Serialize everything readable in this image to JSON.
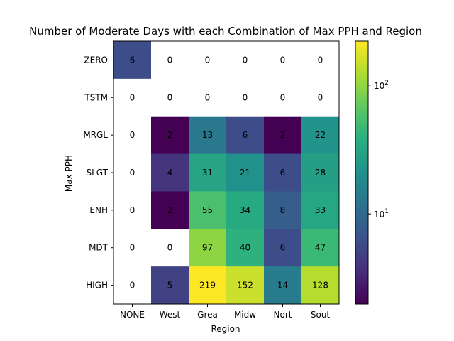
{
  "chart_data": {
    "type": "heatmap",
    "title": "Number of Moderate Days with each Combination of Max PPH and Region",
    "xlabel": "Region",
    "ylabel": "Max PPH",
    "x_categories": [
      "NONE",
      "West",
      "Grea",
      "Midw",
      "Nort",
      "Sout"
    ],
    "y_categories": [
      "ZERO",
      "TSTM",
      "MRGL",
      "SLGT",
      "ENH",
      "MDT",
      "HIGH"
    ],
    "values": [
      [
        6,
        0,
        0,
        0,
        0,
        0
      ],
      [
        0,
        0,
        0,
        0,
        0,
        0
      ],
      [
        0,
        2,
        13,
        6,
        2,
        22
      ],
      [
        0,
        4,
        31,
        21,
        6,
        28
      ],
      [
        0,
        2,
        55,
        34,
        8,
        33
      ],
      [
        0,
        0,
        97,
        40,
        6,
        47
      ],
      [
        0,
        5,
        219,
        152,
        14,
        128
      ]
    ],
    "color_scale": "log",
    "colormap": "viridis",
    "zero_color": "#ffffff",
    "colorbar": {
      "range": [
        2,
        219
      ],
      "ticks": [
        {
          "value": 10,
          "base": "10",
          "exp": "1"
        },
        {
          "value": 100,
          "base": "10",
          "exp": "2"
        }
      ]
    }
  }
}
